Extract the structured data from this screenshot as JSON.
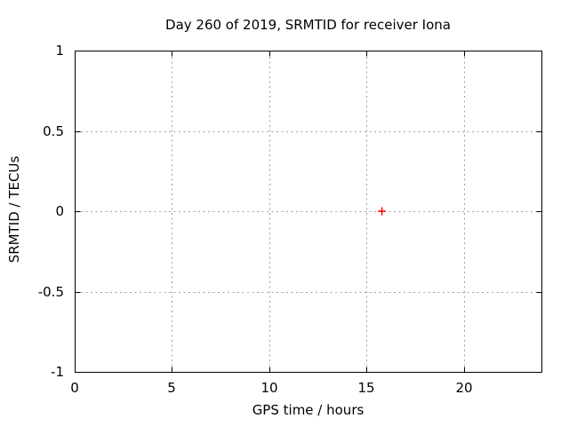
{
  "chart": {
    "title": "Day 260 of 2019, SRMTID for receiver Iona",
    "xlabel": "GPS time / hours",
    "ylabel": "SRMTID / TECUs"
  },
  "chart_data": {
    "type": "scatter",
    "title": "Day 260 of 2019, SRMTID for receiver Iona",
    "xlabel": "GPS time / hours",
    "ylabel": "SRMTID / TECUs",
    "xlim": [
      0,
      24
    ],
    "ylim": [
      -1,
      1
    ],
    "xticks": [
      0,
      5,
      10,
      15,
      20
    ],
    "yticks": [
      -1,
      -0.5,
      0,
      0.5,
      1
    ],
    "grid": true,
    "legend": false,
    "series": [
      {
        "name": "SRMTID",
        "marker": "plus",
        "color": "#ff0000",
        "points": [
          {
            "x": 15.8,
            "y": 0.0
          }
        ]
      }
    ]
  },
  "colors": {
    "background": "#ffffff",
    "frame": "#000000",
    "grid": "#a0a0a0",
    "text": "#000000",
    "point": "#ff0000"
  }
}
